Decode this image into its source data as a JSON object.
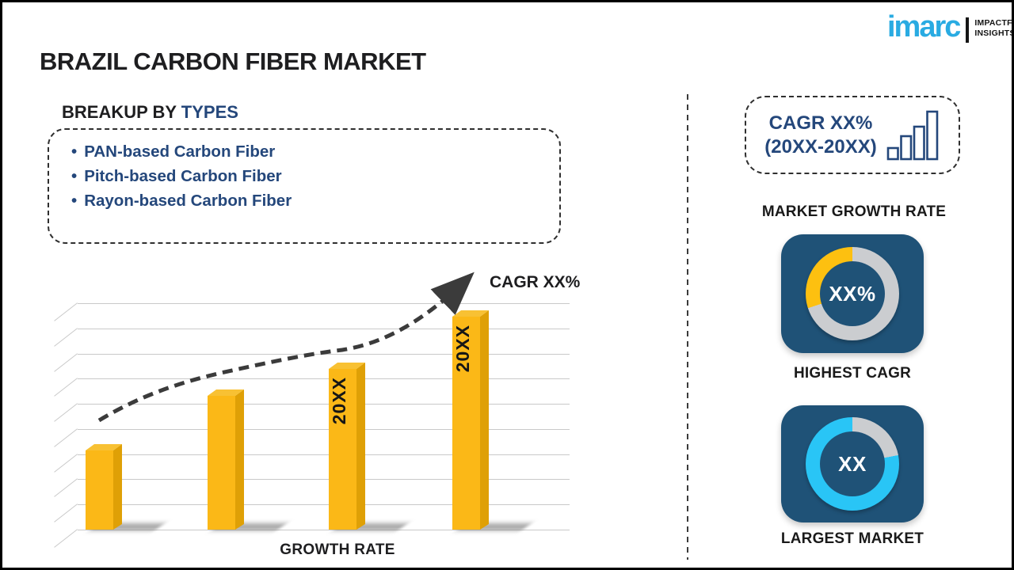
{
  "logo": {
    "brand": "imarc",
    "tagline1": "IMPACTFUL",
    "tagline2": "INSIGHTS"
  },
  "title": "BRAZIL CARBON FIBER MARKET",
  "breakup": {
    "heading_prefix": "BREAKUP BY ",
    "heading_highlight": "TYPES",
    "bullet": "•",
    "items": [
      "PAN-based Carbon Fiber",
      "Pitch-based Carbon Fiber",
      "Rayon-based Carbon Fiber"
    ]
  },
  "chart_data": [
    {
      "type": "bar",
      "title": "GROWTH RATE",
      "categories": [
        "",
        "",
        "20XX",
        "20XX"
      ],
      "values": [
        35,
        59,
        71,
        94
      ],
      "ylim": [
        0,
        100
      ],
      "ylabel": "",
      "xlabel": "GROWTH RATE",
      "annotation": "CAGR XX%",
      "gridlines": 10,
      "bar_color": "#FBB817",
      "trend_color": "#3B3B3B"
    },
    {
      "type": "donut",
      "label": "HIGHEST CAGR",
      "center_text": "XX%",
      "segments": [
        {
          "name": "remainder",
          "color": "#CBCDD0",
          "pct": 70
        },
        {
          "name": "highlight",
          "color": "#FDC010",
          "pct": 30
        }
      ]
    },
    {
      "type": "donut",
      "label": "LARGEST MARKET",
      "center_text": "XX",
      "segments": [
        {
          "name": "remainder",
          "color": "#CBCDD0",
          "pct": 22
        },
        {
          "name": "main",
          "color": "#29C5F6",
          "pct": 78
        }
      ]
    }
  ],
  "sidebar": {
    "cagr_box": {
      "line1": "CAGR XX%",
      "line2": "(20XX-20XX)"
    },
    "market_growth_rate_label": "MARKET GROWTH RATE"
  },
  "colors": {
    "accent_navy": "#24477B",
    "bar_gold": "#FBB817",
    "tile_blue": "#1F5277",
    "ring_gray": "#CBCDD0",
    "ring_yellow": "#FDC010",
    "ring_cyan": "#29C5F6",
    "logo_cyan": "#29ABE2",
    "text_dark": "#1E1E20"
  }
}
